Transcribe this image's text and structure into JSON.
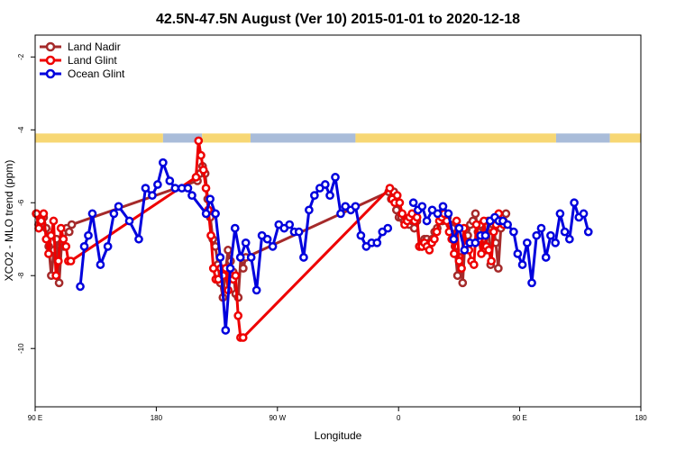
{
  "chart_data": {
    "type": "line",
    "title": "42.5N-47.5N August (Ver 10)   2015-01-01 to 2020-12-18",
    "xlabel": "Longitude",
    "ylabel": "XCO2 - MLO trend (ppm)",
    "xlim": [
      90,
      450
    ],
    "ylim": [
      -11.6,
      -1.4
    ],
    "x_ticks": [
      {
        "value": 90,
        "label": "90 E"
      },
      {
        "value": 180,
        "label": "180"
      },
      {
        "value": 270,
        "label": "90 W"
      },
      {
        "value": 360,
        "label": "0"
      },
      {
        "value": 450,
        "label": "90 E"
      },
      {
        "value": 540,
        "label": "180"
      }
    ],
    "y_ticks": [
      {
        "value": -2,
        "label": "-2"
      },
      {
        "value": -4,
        "label": "-4"
      },
      {
        "value": -6,
        "label": "-6"
      },
      {
        "value": -8,
        "label": "-8"
      },
      {
        "value": -10,
        "label": "-10"
      }
    ],
    "legend_position": "top-left",
    "land_ocean_strip": {
      "y_range": [
        -4.35,
        -4.1
      ],
      "land_color": "#f7d774",
      "ocean_color": "#a9bcd9",
      "segments": [
        {
          "type": "land",
          "x": [
            90,
            185
          ]
        },
        {
          "type": "ocean",
          "x": [
            185,
            214
          ]
        },
        {
          "type": "land",
          "x": [
            214,
            250
          ]
        },
        {
          "type": "ocean",
          "x": [
            250,
            328
          ]
        },
        {
          "type": "land",
          "x": [
            328,
            477
          ]
        },
        {
          "type": "ocean",
          "x": [
            477,
            517
          ]
        },
        {
          "type": "land",
          "x": [
            517,
            540
          ]
        }
      ]
    },
    "series": [
      {
        "name": "Land Nadir",
        "color": "#a52a2a",
        "x": [
          90.7,
          92.6,
          94.4,
          96.3,
          98.2,
          100.1,
          102,
          104,
          105.9,
          107.8,
          109.7,
          111.5,
          113.4,
          115.3,
          117.2,
          210.6,
          212.5,
          214.4,
          216.3,
          218.2,
          220.1,
          222,
          223.9,
          225.8,
          227.6,
          229.5,
          231.4,
          233.3,
          235.2,
          237.1,
          239,
          240.9,
          242.8,
          244.6,
          246.5,
          352.7,
          354.6,
          356.5,
          358.4,
          360.3,
          362.2,
          364.1,
          366,
          367.9,
          369.8,
          371.7,
          373.6,
          375.4,
          377.3,
          379.2,
          381.1,
          383,
          384.9,
          386.8,
          388.7,
          390.6,
          392.5,
          394.4,
          396.3,
          398.1,
          400,
          401.9,
          403.8,
          405.7,
          407.6,
          409.5,
          411.4,
          413.3,
          415.2,
          417.1,
          419,
          420.8,
          422.7,
          424.6,
          426.5,
          428.4,
          430.3,
          432.2,
          434.1,
          436,
          437.9,
          439.8
        ],
        "y": [
          -6.3,
          -6.6,
          -6.5,
          -6.4,
          -6.7,
          -7.2,
          -8.0,
          -7.3,
          -7.0,
          -8.2,
          -7.1,
          -7.2,
          -6.7,
          -6.8,
          -6.6,
          -5.4,
          -5.2,
          -5.0,
          -5.2,
          -5.9,
          -6.4,
          -7.0,
          -7.2,
          -7.7,
          -8.2,
          -8.6,
          -7.9,
          -7.3,
          -7.6,
          -7.9,
          -8.5,
          -8.6,
          -7.5,
          -7.8,
          -7.5,
          -5.7,
          -5.9,
          -5.7,
          -6.2,
          -6.4,
          -6.4,
          -6.5,
          -6.5,
          -6.6,
          -6.5,
          -6.7,
          -6.5,
          -7.2,
          -7.2,
          -7.0,
          -7.0,
          -7.1,
          -7.0,
          -6.8,
          -6.7,
          -6.5,
          -6.5,
          -6.3,
          -6.4,
          -6.6,
          -6.7,
          -7.2,
          -8.0,
          -7.5,
          -8.2,
          -7.0,
          -6.9,
          -6.6,
          -6.5,
          -6.3,
          -6.8,
          -6.6,
          -7.0,
          -7.3,
          -6.5,
          -7.7,
          -6.6,
          -7.1,
          -7.8,
          -6.7,
          -6.5,
          -6.3
        ],
        "y_note": ""
      },
      {
        "name": "Land Glint",
        "color": "#ee0000",
        "x": [
          91,
          92.7,
          94.5,
          96.3,
          98.2,
          100,
          101.8,
          103.7,
          105.5,
          107.3,
          109.2,
          111,
          112.9,
          114.7,
          116.5,
          209.5,
          211.4,
          213.2,
          215,
          216.9,
          218.7,
          220.6,
          222.4,
          224.2,
          226.1,
          227.9,
          229.8,
          231.6,
          233.4,
          235.3,
          237.1,
          238.9,
          240.8,
          242.6,
          244.5,
          353.5,
          355.3,
          357.2,
          359,
          360.8,
          362.7,
          364.5,
          366.4,
          368.2,
          370,
          371.9,
          373.7,
          375.6,
          377.4,
          379.2,
          381.1,
          382.9,
          384.7,
          386.6,
          388.4,
          390.3,
          392.1,
          393.9,
          395.8,
          397.6,
          399.5,
          401.3,
          403.1,
          405,
          406.8,
          408.6,
          410.5,
          412.3,
          414.2,
          416,
          417.8,
          419.7,
          421.5,
          423.4,
          425.2,
          427,
          428.9,
          430.7,
          432.5,
          434.4,
          436.2,
          438.1
        ],
        "y": [
          -6.3,
          -6.7,
          -6.5,
          -6.3,
          -7.0,
          -7.4,
          -6.9,
          -6.5,
          -8.0,
          -7.6,
          -6.7,
          -7.0,
          -7.2,
          -7.6,
          -7.6,
          -5.3,
          -4.3,
          -4.7,
          -5.1,
          -5.6,
          -6.2,
          -6.9,
          -7.8,
          -8.1,
          -8.1,
          -7.8,
          -8.0,
          -7.8,
          -8.4,
          -8.0,
          -8.1,
          -8.0,
          -9.1,
          -9.7,
          -9.7,
          -5.6,
          -5.9,
          -6.0,
          -5.8,
          -6.0,
          -6.3,
          -6.6,
          -6.5,
          -6.4,
          -6.3,
          -6.5,
          -6.4,
          -7.2,
          -7.2,
          -7.1,
          -7.2,
          -7.3,
          -7.1,
          -7.0,
          -6.8,
          -6.5,
          -6.4,
          -6.3,
          -6.5,
          -6.8,
          -7.0,
          -7.4,
          -6.5,
          -7.6,
          -7.8,
          -6.7,
          -7.2,
          -7.3,
          -7.6,
          -7.7,
          -6.6,
          -7.0,
          -7.4,
          -6.5,
          -7.2,
          -7.3,
          -7.6,
          -6.8,
          -6.6,
          -6.3,
          -6.5,
          -6.6
        ],
        "y_note": ""
      },
      {
        "name": "Ocean Glint",
        "color": "#0000dd",
        "x": [
          123.5,
          126.5,
          129.5,
          132.5,
          138.5,
          144,
          148.5,
          152,
          160,
          167,
          172,
          177,
          181,
          185,
          190,
          194,
          199,
          203.5,
          206.5,
          217,
          220,
          224,
          227.5,
          231.5,
          235,
          238.5,
          242.5,
          246.5,
          250.5,
          254.5,
          258.5,
          262.5,
          266.5,
          271,
          275,
          279,
          282.5,
          286,
          289.5,
          293.5,
          297.5,
          301.5,
          305.5,
          309,
          313,
          317,
          320.5,
          324.5,
          328,
          332,
          336,
          340,
          344,
          348,
          352
        ],
        "y": [
          -8.3,
          -7.2,
          -6.9,
          -6.3,
          -7.7,
          -7.2,
          -6.3,
          -6.1,
          -6.5,
          -7.0,
          -5.6,
          -5.8,
          -5.5,
          -4.9,
          -5.4,
          -5.6,
          -5.6,
          -5.6,
          -5.8,
          -6.3,
          -5.9,
          -6.3,
          -7.5,
          -9.5,
          -7.8,
          -6.7,
          -7.5,
          -7.1,
          -7.5,
          -8.4,
          -6.9,
          -7.0,
          -7.2,
          -6.6,
          -6.7,
          -6.6,
          -6.8,
          -6.8,
          -7.5,
          -6.2,
          -5.8,
          -5.6,
          -5.5,
          -5.8,
          -5.3,
          -6.3,
          -6.1,
          -6.2,
          -6.1,
          -6.9,
          -7.2,
          -7.1,
          -7.1,
          -6.8,
          -6.7
        ],
        "y_note": ""
      }
    ],
    "series_extra": [
      {
        "name": "Ocean Glint",
        "x": [
          371,
          374.5,
          377.5,
          381,
          385,
          389,
          393,
          397,
          401,
          405,
          409,
          413,
          417,
          421,
          424.5,
          428,
          431.5,
          434.5,
          437.5,
          441,
          445.5,
          448.5,
          452,
          455.5,
          459,
          462.5,
          466,
          469.5,
          473,
          476.5,
          480,
          483.5,
          487,
          490.5,
          494,
          497.5,
          501
        ],
        "y": [
          -6.0,
          -6.2,
          -6.1,
          -6.5,
          -6.2,
          -6.3,
          -6.1,
          -6.3,
          -7.0,
          -6.7,
          -7.3,
          -7.1,
          -7.1,
          -6.9,
          -6.9,
          -6.5,
          -6.4,
          -6.5,
          -6.5,
          -6.6,
          -6.8,
          -7.4,
          -7.7,
          -7.1,
          -8.2,
          -6.9,
          -6.7,
          -7.5,
          -6.9,
          -7.1,
          -6.3,
          -6.8,
          -7.0,
          -6.0,
          -6.4,
          -6.3,
          -6.8
        ]
      }
    ]
  },
  "legend": {
    "items": [
      {
        "label": "Land Nadir",
        "color": "#a52a2a"
      },
      {
        "label": "Land Glint",
        "color": "#ee0000"
      },
      {
        "label": "Ocean Glint",
        "color": "#0000dd"
      }
    ]
  }
}
